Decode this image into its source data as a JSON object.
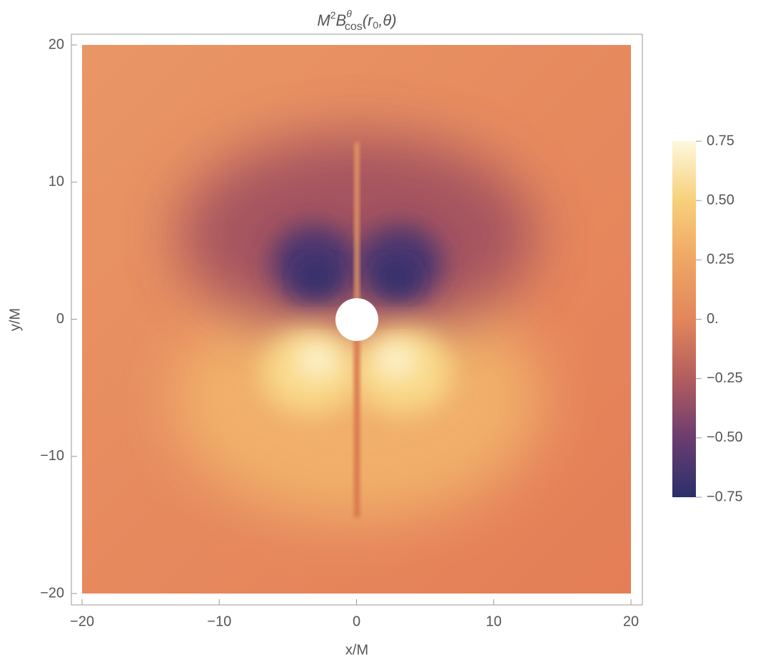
{
  "chart_data": {
    "type": "density",
    "title": [
      "M",
      "2",
      "B",
      "θ",
      "cos",
      "(r",
      "0",
      ",θ)"
    ],
    "x_label": "x/M",
    "y_label": "y/M",
    "xlim": [
      -20,
      20
    ],
    "ylim": [
      -20,
      20
    ],
    "xticks": [
      {
        "value": -20,
        "label": "−20"
      },
      {
        "value": -10,
        "label": "−10"
      },
      0,
      10,
      20
    ],
    "yticks": [
      {
        "value": -20,
        "label": "−20"
      },
      {
        "value": -10,
        "label": "−10"
      },
      0,
      10,
      20
    ],
    "colorbar": {
      "lim": [
        -0.75,
        0.75
      ],
      "ticks": [
        0.75,
        {
          "value": 0.5,
          "label": "0.50"
        },
        0.25,
        {
          "value": 0,
          "label": "0."
        },
        {
          "value": -0.25,
          "label": "−0.25"
        },
        {
          "value": -0.5,
          "label": "−0.50"
        },
        {
          "value": -0.75,
          "label": "−0.75"
        }
      ],
      "colors": [
        "#2b2f6b",
        "#6b3d70",
        "#b35d5e",
        "#e3865b",
        "#efa664",
        "#f7d07a",
        "#fdf8dc"
      ]
    }
  }
}
